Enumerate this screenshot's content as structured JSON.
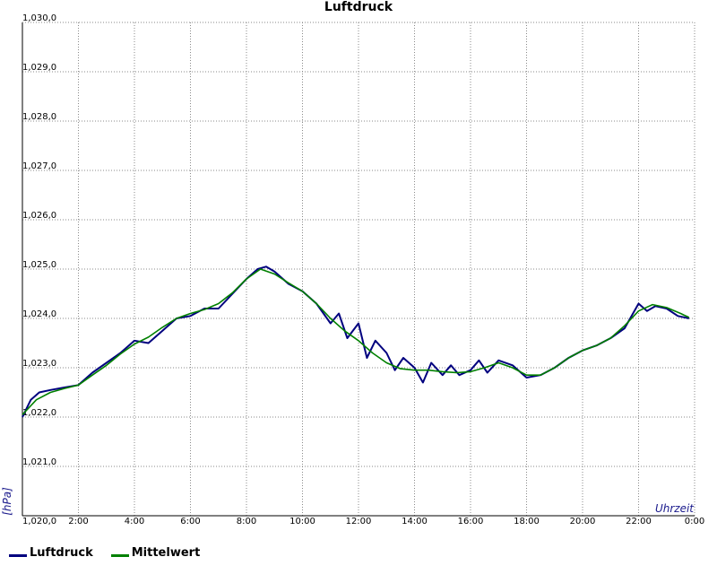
{
  "chart_data": {
    "type": "line",
    "title": "Luftdruck",
    "xlabel": "Uhrzeit",
    "ylabel": "[hPa]",
    "x_ticks": [
      "2:00",
      "4:00",
      "6:00",
      "8:00",
      "10:00",
      "12:00",
      "14:00",
      "16:00",
      "18:00",
      "20:00",
      "22:00",
      "0:00"
    ],
    "y_ticks": [
      "1,020,0",
      "1,021,0",
      "1,022,0",
      "1,023,0",
      "1,024,0",
      "1,025,0",
      "1,026,0",
      "1,027,0",
      "1,028,0",
      "1,029,0",
      "1,030,0"
    ],
    "xlim_hours": [
      0,
      24
    ],
    "ylim": [
      1020,
      1030
    ],
    "grid": true,
    "legend_position": "bottom-left",
    "series": [
      {
        "name": "Luftdruck",
        "color": "#00007f",
        "x_hours": [
          0,
          0.3,
          0.6,
          1,
          1.5,
          2,
          2.5,
          3,
          3.5,
          4,
          4.5,
          5,
          5.5,
          6,
          6.5,
          7,
          7.5,
          8,
          8.4,
          8.7,
          9,
          9.5,
          10,
          10.5,
          11,
          11.3,
          11.6,
          12,
          12.3,
          12.6,
          13,
          13.3,
          13.6,
          14,
          14.3,
          14.6,
          15,
          15.3,
          15.6,
          16,
          16.3,
          16.6,
          17,
          17.5,
          18,
          18.5,
          19,
          19.5,
          20,
          20.5,
          21,
          21.5,
          22,
          22.3,
          22.6,
          23,
          23.4,
          23.8
        ],
        "values": [
          1022.0,
          1022.35,
          1022.5,
          1022.55,
          1022.6,
          1022.65,
          1022.9,
          1023.1,
          1023.3,
          1023.55,
          1023.5,
          1023.75,
          1024.0,
          1024.05,
          1024.2,
          1024.2,
          1024.5,
          1024.8,
          1025.0,
          1025.05,
          1024.95,
          1024.7,
          1024.55,
          1024.3,
          1023.9,
          1024.1,
          1023.6,
          1023.9,
          1023.2,
          1023.55,
          1023.3,
          1022.95,
          1023.2,
          1023.0,
          1022.7,
          1023.1,
          1022.85,
          1023.05,
          1022.85,
          1022.95,
          1023.15,
          1022.9,
          1023.15,
          1023.05,
          1022.8,
          1022.85,
          1023.0,
          1023.2,
          1023.35,
          1023.45,
          1023.6,
          1023.8,
          1024.3,
          1024.15,
          1024.25,
          1024.2,
          1024.05,
          1024.0
        ]
      },
      {
        "name": "Mittelwert",
        "color": "#008000",
        "x_hours": [
          0,
          0.5,
          1,
          1.5,
          2,
          2.5,
          3,
          3.5,
          4,
          4.5,
          5,
          5.5,
          6,
          6.5,
          7,
          7.5,
          8,
          8.5,
          9,
          9.5,
          10,
          10.5,
          11,
          11.5,
          12,
          12.5,
          13,
          13.5,
          14,
          14.5,
          15,
          15.5,
          16,
          16.5,
          17,
          17.5,
          18,
          18.5,
          19,
          19.5,
          20,
          20.5,
          21,
          21.5,
          22,
          22.5,
          23,
          23.5,
          23.8
        ],
        "values": [
          1022.05,
          1022.35,
          1022.5,
          1022.58,
          1022.65,
          1022.85,
          1023.05,
          1023.28,
          1023.48,
          1023.62,
          1023.82,
          1024.0,
          1024.1,
          1024.18,
          1024.3,
          1024.52,
          1024.8,
          1025.0,
          1024.9,
          1024.72,
          1024.55,
          1024.3,
          1024.0,
          1023.75,
          1023.55,
          1023.3,
          1023.1,
          1022.98,
          1022.95,
          1022.95,
          1022.92,
          1022.9,
          1022.92,
          1023.0,
          1023.1,
          1023.0,
          1022.85,
          1022.85,
          1023.0,
          1023.2,
          1023.35,
          1023.45,
          1023.6,
          1023.85,
          1024.15,
          1024.28,
          1024.22,
          1024.1,
          1024.02
        ]
      }
    ]
  },
  "legend": {
    "luftdruck_label": "Luftdruck",
    "mittelwert_label": "Mittelwert"
  }
}
